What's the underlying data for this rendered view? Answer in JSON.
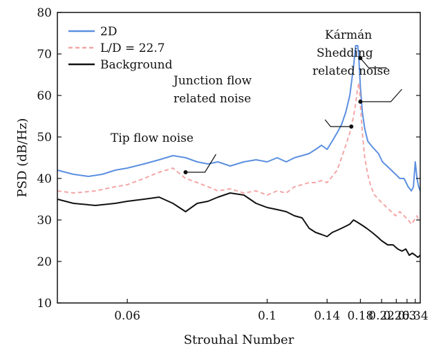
{
  "chart_data": {
    "type": "line",
    "title": "",
    "xlabel": "Strouhal Number",
    "ylabel": "PSD (dB/Hz)",
    "x_scale": "reciprocal",
    "xlim": [
      0.05,
      0.37
    ],
    "ylim": [
      10,
      80
    ],
    "xticks": [
      {
        "value": 0.06,
        "label": "0.06"
      },
      {
        "value": 0.1,
        "label": "0.1"
      },
      {
        "value": 0.14,
        "label": "0.14"
      },
      {
        "value": 0.18,
        "label": "0.18"
      },
      {
        "value": 0.22,
        "label": "0.22"
      },
      {
        "value": 0.26,
        "label": "0.26"
      },
      {
        "value": 0.3,
        "label": "0.3"
      },
      {
        "value": 0.34,
        "label": "0.34"
      }
    ],
    "yticks": [
      {
        "value": 10,
        "label": "10"
      },
      {
        "value": 20,
        "label": "20"
      },
      {
        "value": 30,
        "label": "30"
      },
      {
        "value": 40,
        "label": "40"
      },
      {
        "value": 50,
        "label": "50"
      },
      {
        "value": 60,
        "label": "60"
      },
      {
        "value": 70,
        "label": "70"
      },
      {
        "value": 80,
        "label": "80"
      }
    ],
    "grid": false,
    "legend_position": "top-left",
    "series": [
      {
        "name": "2D",
        "color": "#5b8fe0",
        "style": "solid",
        "x": [
          0.05,
          0.052,
          0.054,
          0.056,
          0.058,
          0.06,
          0.063,
          0.066,
          0.069,
          0.072,
          0.075,
          0.078,
          0.081,
          0.085,
          0.09,
          0.095,
          0.1,
          0.105,
          0.11,
          0.115,
          0.12,
          0.125,
          0.13,
          0.135,
          0.14,
          0.145,
          0.15,
          0.155,
          0.16,
          0.165,
          0.17,
          0.173,
          0.176,
          0.178,
          0.18,
          0.183,
          0.187,
          0.192,
          0.198,
          0.205,
          0.213,
          0.222,
          0.233,
          0.245,
          0.258,
          0.272,
          0.288,
          0.305,
          0.32,
          0.33,
          0.34,
          0.35,
          0.36,
          0.37
        ],
        "y": [
          42,
          41,
          40.5,
          41,
          42,
          42.5,
          43.5,
          44.5,
          45.5,
          45,
          44,
          43.5,
          44,
          43,
          44,
          44.5,
          44,
          45,
          44,
          45,
          45.5,
          46,
          47,
          48,
          47,
          49,
          51,
          53,
          56,
          60,
          67,
          72,
          72,
          68,
          62,
          56,
          52,
          49,
          48,
          47,
          46,
          44,
          43,
          42,
          41,
          40,
          40,
          38,
          37,
          38,
          44,
          40,
          38,
          37
        ]
      },
      {
        "name": "L/D = 22.7",
        "color": "#f4a6a6",
        "style": "dashed",
        "x": [
          0.05,
          0.052,
          0.055,
          0.058,
          0.06,
          0.063,
          0.066,
          0.069,
          0.072,
          0.075,
          0.078,
          0.081,
          0.085,
          0.09,
          0.095,
          0.1,
          0.105,
          0.11,
          0.115,
          0.12,
          0.125,
          0.13,
          0.135,
          0.14,
          0.145,
          0.15,
          0.155,
          0.16,
          0.165,
          0.17,
          0.173,
          0.176,
          0.178,
          0.18,
          0.183,
          0.187,
          0.192,
          0.198,
          0.205,
          0.213,
          0.222,
          0.233,
          0.245,
          0.258,
          0.272,
          0.288,
          0.305,
          0.32,
          0.335,
          0.35,
          0.36,
          0.37
        ],
        "y": [
          37,
          36.5,
          37,
          38,
          38.5,
          40,
          41.5,
          42.5,
          40,
          39,
          38,
          37,
          37.5,
          36.5,
          37,
          36,
          37,
          36.5,
          38,
          38.5,
          39,
          39,
          39.5,
          39,
          40.5,
          42,
          45,
          48,
          51,
          55,
          58,
          62,
          63,
          58,
          51,
          45,
          41,
          38,
          36,
          35,
          34,
          33,
          32,
          31,
          32,
          31,
          30,
          29,
          30,
          31,
          30,
          30
        ]
      },
      {
        "name": "Background",
        "color": "#111111",
        "style": "solid",
        "x": [
          0.05,
          0.052,
          0.055,
          0.058,
          0.06,
          0.063,
          0.066,
          0.069,
          0.072,
          0.075,
          0.078,
          0.081,
          0.085,
          0.09,
          0.095,
          0.1,
          0.105,
          0.11,
          0.115,
          0.12,
          0.125,
          0.13,
          0.135,
          0.14,
          0.145,
          0.15,
          0.155,
          0.16,
          0.165,
          0.17,
          0.175,
          0.18,
          0.185,
          0.19,
          0.2,
          0.21,
          0.22,
          0.235,
          0.25,
          0.265,
          0.28,
          0.295,
          0.31,
          0.325,
          0.34,
          0.355,
          0.37
        ],
        "y": [
          35,
          34,
          33.5,
          34,
          34.5,
          35,
          35.5,
          34,
          32,
          34,
          34.5,
          35.5,
          36.5,
          36,
          34,
          33,
          32.5,
          32,
          31,
          30.5,
          28,
          27,
          26.5,
          26,
          27,
          27.5,
          28,
          28.5,
          29,
          30,
          29.5,
          29,
          28.5,
          28,
          27,
          26,
          25,
          24,
          24,
          23,
          22.5,
          23,
          21.5,
          22,
          21.5,
          21,
          21.5
        ]
      }
    ],
    "annotations": [
      {
        "id": "tip",
        "lines": [
          "Tip flow noise"
        ],
        "x": 0.072,
        "y": 41.5
      },
      {
        "id": "junction",
        "lines": [
          "Junction flow",
          "related noise"
        ],
        "x": 0.167,
        "y": 52.5
      },
      {
        "id": "karman",
        "lines": [
          "Kármán",
          "Shedding",
          "related noise"
        ],
        "x": 0.18,
        "y": 69
      }
    ],
    "extra_point": {
      "x": 0.18,
      "y": 58.5
    }
  }
}
